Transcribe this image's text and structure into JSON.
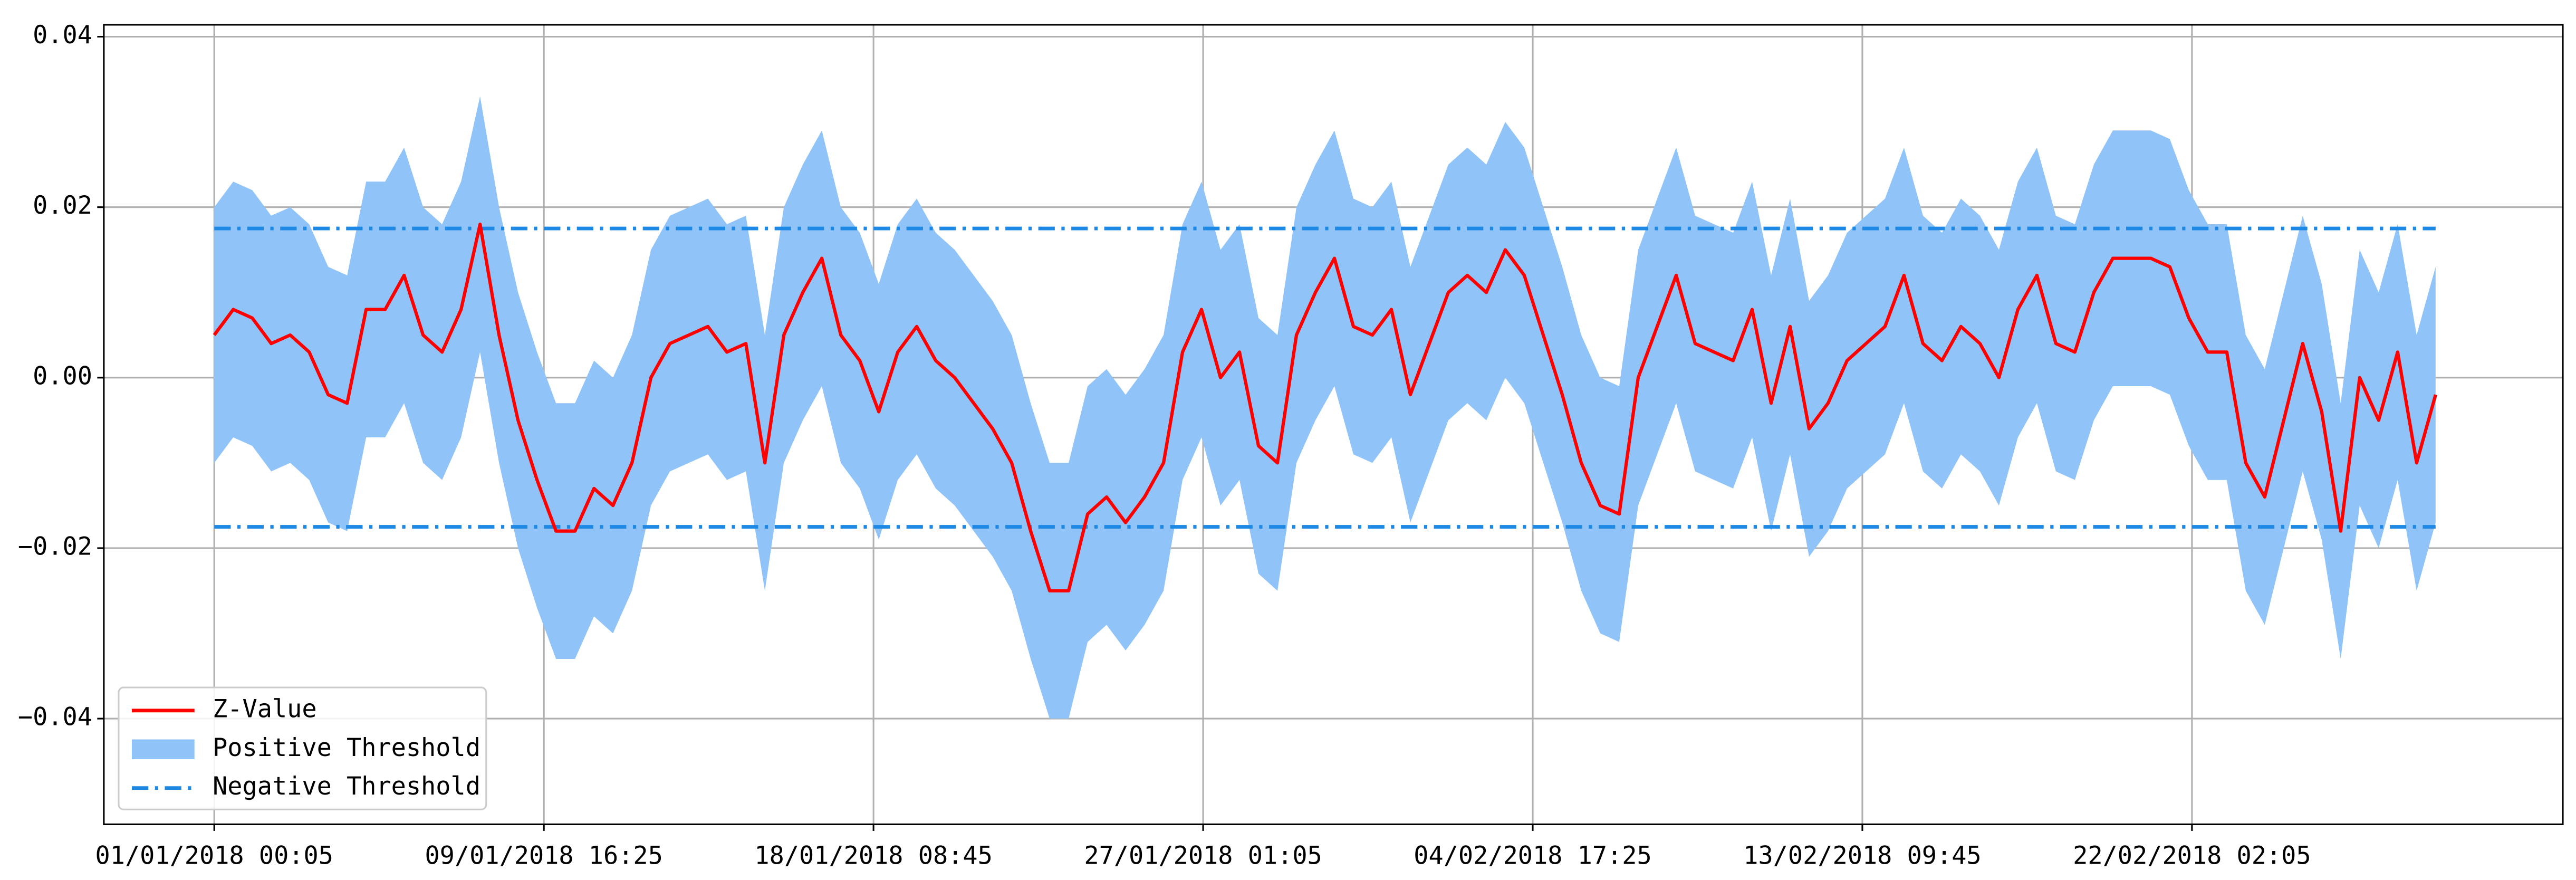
{
  "chart_data": {
    "type": "line",
    "x": [
      "01/01/2018 00:05",
      "01/01/2018 12:05",
      "02/01/2018 00:05",
      "02/01/2018 12:05",
      "03/01/2018 00:05",
      "03/01/2018 12:05",
      "04/01/2018 00:05",
      "04/01/2018 12:05",
      "05/01/2018 00:05",
      "05/01/2018 12:05",
      "06/01/2018 00:05",
      "06/01/2018 12:05",
      "07/01/2018 00:05",
      "07/01/2018 12:05",
      "08/01/2018 00:05",
      "08/01/2018 12:05",
      "09/01/2018 00:05",
      "09/01/2018 12:05",
      "10/01/2018 00:05",
      "10/01/2018 12:05",
      "11/01/2018 00:05",
      "11/01/2018 12:05",
      "12/01/2018 00:05",
      "12/01/2018 12:05",
      "13/01/2018 00:05",
      "13/01/2018 12:05",
      "14/01/2018 00:05",
      "14/01/2018 12:05",
      "15/01/2018 00:05",
      "15/01/2018 12:05",
      "16/01/2018 00:05",
      "16/01/2018 12:05",
      "17/01/2018 00:05",
      "17/01/2018 12:05",
      "18/01/2018 00:05",
      "18/01/2018 12:05",
      "19/01/2018 00:05",
      "19/01/2018 12:05",
      "20/01/2018 00:05",
      "20/01/2018 12:05",
      "21/01/2018 00:05",
      "21/01/2018 12:05",
      "22/01/2018 00:05",
      "22/01/2018 12:05",
      "23/01/2018 00:05",
      "23/01/2018 12:05",
      "24/01/2018 00:05",
      "24/01/2018 12:05",
      "25/01/2018 00:05",
      "25/01/2018 12:05",
      "26/01/2018 00:05",
      "26/01/2018 12:05",
      "27/01/2018 00:05",
      "27/01/2018 12:05",
      "28/01/2018 00:05",
      "28/01/2018 12:05",
      "29/01/2018 00:05",
      "29/01/2018 12:05",
      "30/01/2018 00:05",
      "30/01/2018 12:05",
      "31/01/2018 00:05",
      "31/01/2018 12:05",
      "01/02/2018 00:05",
      "01/02/2018 12:05",
      "02/02/2018 00:05",
      "02/02/2018 12:05",
      "03/02/2018 00:05",
      "03/02/2018 12:05",
      "04/02/2018 00:05",
      "04/02/2018 12:05",
      "05/02/2018 00:05",
      "05/02/2018 12:05",
      "06/02/2018 00:05",
      "06/02/2018 12:05",
      "07/02/2018 00:05",
      "07/02/2018 12:05",
      "08/02/2018 00:05",
      "08/02/2018 12:05",
      "09/02/2018 00:05",
      "09/02/2018 12:05",
      "10/02/2018 00:05",
      "10/02/2018 12:05",
      "11/02/2018 00:05",
      "11/02/2018 12:05",
      "12/02/2018 00:05",
      "12/02/2018 12:05",
      "13/02/2018 00:05",
      "13/02/2018 12:05",
      "14/02/2018 00:05",
      "14/02/2018 12:05",
      "15/02/2018 00:05",
      "15/02/2018 12:05",
      "16/02/2018 00:05",
      "16/02/2018 12:05",
      "17/02/2018 00:05",
      "17/02/2018 12:05",
      "18/02/2018 00:05",
      "18/02/2018 12:05",
      "19/02/2018 00:05",
      "19/02/2018 12:05",
      "20/02/2018 00:05",
      "20/02/2018 12:05",
      "21/02/2018 00:05",
      "21/02/2018 12:05",
      "22/02/2018 00:05",
      "22/02/2018 12:05",
      "23/02/2018 00:05",
      "23/02/2018 12:05",
      "24/02/2018 00:05",
      "24/02/2018 12:05",
      "25/02/2018 00:05",
      "25/02/2018 12:05",
      "26/02/2018 00:05",
      "26/02/2018 12:05",
      "27/02/2018 00:05",
      "27/02/2018 12:05",
      "28/02/2018 00:05",
      "28/02/2018 12:05"
    ],
    "series": [
      {
        "name": "Z-Value",
        "color": "#ff0000",
        "values": [
          0.005,
          0.008,
          0.007,
          0.004,
          0.005,
          0.003,
          -0.002,
          -0.003,
          0.008,
          0.008,
          0.012,
          0.005,
          0.003,
          0.008,
          0.018,
          0.005,
          -0.005,
          -0.012,
          -0.018,
          -0.018,
          -0.013,
          -0.015,
          -0.01,
          0,
          0.004,
          0.005,
          0.006,
          0.003,
          0.004,
          -0.01,
          0.005,
          0.01,
          0.014,
          0.005,
          0.002,
          -0.004,
          0.003,
          0.006,
          0.002,
          0,
          -0.003,
          -0.006,
          -0.01,
          -0.018,
          -0.025,
          -0.025,
          -0.016,
          -0.014,
          -0.017,
          -0.014,
          -0.01,
          0.003,
          0.008,
          0,
          0.003,
          -0.008,
          -0.01,
          0.005,
          0.01,
          0.014,
          0.006,
          0.005,
          0.008,
          -0.002,
          0.004,
          0.01,
          0.012,
          0.01,
          0.015,
          0.012,
          0.005,
          -0.002,
          -0.01,
          -0.015,
          -0.016,
          0,
          0.006,
          0.012,
          0.004,
          0.003,
          0.002,
          0.008,
          -0.003,
          0.006,
          -0.006,
          -0.003,
          0.002,
          0.004,
          0.006,
          0.012,
          0.004,
          0.002,
          0.006,
          0.004,
          0,
          0.008,
          0.012,
          0.004,
          0.003,
          0.01,
          0.014,
          0.014,
          0.014,
          0.013,
          0.007,
          0.003,
          0.003,
          -0.01,
          -0.014,
          -0.005,
          0.004,
          -0.004,
          -0.018,
          0,
          -0.005,
          0.003,
          -0.01,
          -0.002
        ]
      }
    ],
    "band": {
      "name": "Positive Threshold",
      "color": "#90c4f9",
      "upper": [
        0.02,
        0.023,
        0.022,
        0.019,
        0.02,
        0.018,
        0.013,
        0.012,
        0.023,
        0.023,
        0.027,
        0.02,
        0.018,
        0.023,
        0.033,
        0.02,
        0.01,
        0.003,
        -0.003,
        -0.003,
        0.002,
        0,
        0.005,
        0.015,
        0.019,
        0.02,
        0.021,
        0.018,
        0.019,
        0.005,
        0.02,
        0.025,
        0.029,
        0.02,
        0.017,
        0.011,
        0.018,
        0.021,
        0.017,
        0.015,
        0.012,
        0.009,
        0.005,
        -0.003,
        -0.01,
        -0.01,
        -0.001,
        0.001,
        -0.002,
        0.001,
        0.005,
        0.018,
        0.023,
        0.015,
        0.018,
        0.007,
        0.005,
        0.02,
        0.025,
        0.029,
        0.021,
        0.02,
        0.023,
        0.013,
        0.019,
        0.025,
        0.027,
        0.025,
        0.03,
        0.027,
        0.02,
        0.013,
        0.005,
        0,
        -0.001,
        0.015,
        0.021,
        0.027,
        0.019,
        0.018,
        0.017,
        0.023,
        0.012,
        0.021,
        0.009,
        0.012,
        0.017,
        0.019,
        0.021,
        0.027,
        0.019,
        0.017,
        0.021,
        0.019,
        0.015,
        0.023,
        0.027,
        0.019,
        0.018,
        0.025,
        0.029,
        0.029,
        0.029,
        0.028,
        0.022,
        0.018,
        0.018,
        0.005,
        0.001,
        0.01,
        0.019,
        0.011,
        -0.003,
        0.015,
        0.01,
        0.018,
        0.005,
        0.013
      ],
      "lower": [
        -0.01,
        -0.007,
        -0.008,
        -0.011,
        -0.01,
        -0.012,
        -0.017,
        -0.018,
        -0.007,
        -0.007,
        -0.003,
        -0.01,
        -0.012,
        -0.007,
        0.003,
        -0.01,
        -0.02,
        -0.027,
        -0.033,
        -0.033,
        -0.028,
        -0.03,
        -0.025,
        -0.015,
        -0.011,
        -0.01,
        -0.009,
        -0.012,
        -0.011,
        -0.025,
        -0.01,
        -0.005,
        -0.001,
        -0.01,
        -0.013,
        -0.019,
        -0.012,
        -0.009,
        -0.013,
        -0.015,
        -0.018,
        -0.021,
        -0.025,
        -0.033,
        -0.04,
        -0.04,
        -0.031,
        -0.029,
        -0.032,
        -0.029,
        -0.025,
        -0.012,
        -0.007,
        -0.015,
        -0.012,
        -0.023,
        -0.025,
        -0.01,
        -0.005,
        -0.001,
        -0.009,
        -0.01,
        -0.007,
        -0.017,
        -0.011,
        -0.005,
        -0.003,
        -0.005,
        0,
        -0.003,
        -0.01,
        -0.017,
        -0.025,
        -0.03,
        -0.031,
        -0.015,
        -0.009,
        -0.003,
        -0.011,
        -0.012,
        -0.013,
        -0.007,
        -0.018,
        -0.009,
        -0.021,
        -0.018,
        -0.013,
        -0.011,
        -0.009,
        -0.003,
        -0.011,
        -0.013,
        -0.009,
        -0.011,
        -0.015,
        -0.007,
        -0.003,
        -0.011,
        -0.012,
        -0.005,
        -0.001,
        -0.001,
        -0.001,
        -0.002,
        -0.008,
        -0.012,
        -0.012,
        -0.025,
        -0.029,
        -0.02,
        -0.011,
        -0.019,
        -0.033,
        -0.015,
        -0.02,
        -0.012,
        -0.025,
        -0.017
      ]
    },
    "hlines": {
      "name": "Negative Threshold",
      "color": "#1e88e5",
      "values": [
        0.0175,
        -0.0175
      ]
    },
    "xlim": [
      "29/12/2017 02:17",
      "03/03/2018 20:29"
    ],
    "xticks": [
      "01/01/2018 00:05",
      "09/01/2018 16:25",
      "18/01/2018 08:45",
      "27/01/2018 01:05",
      "04/02/2018 17:25",
      "13/02/2018 09:45",
      "22/02/2018 02:05"
    ],
    "ylim": [
      -0.0524,
      0.0414
    ],
    "yticks": [
      {
        "value": 0.04,
        "label": "0.04"
      },
      {
        "value": 0.02,
        "label": "0.02"
      },
      {
        "value": 0,
        "label": "0.00"
      },
      {
        "value": -0.02,
        "label": "−0.02"
      },
      {
        "value": -0.04,
        "label": "−0.04"
      }
    ],
    "grid": true,
    "legend": "lower left"
  }
}
